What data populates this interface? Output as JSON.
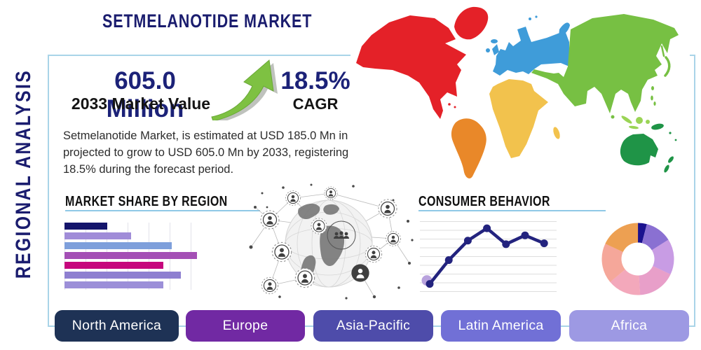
{
  "titles": {
    "side": "REGIONAL ANALYSIS",
    "main": "SETMELANOTIDE MARKET",
    "market_share_section": "MARKET SHARE BY REGION",
    "consumer_behavior_section": "CONSUMER BEHAVIOR"
  },
  "stats": {
    "market_value": "605.0 Million",
    "market_value_label": "2033 Market Value",
    "cagr_value": "18.5%",
    "cagr_label": "CAGR"
  },
  "description": "Setmelanotide Market, is estimated at USD 185.0 Mn in 2026, is projected to grow to USD 605.0 Mn by 2033, registering a CAGR of 18.5% during the forecast period.",
  "region_buttons": [
    {
      "label": "North America",
      "color": "#1e3255"
    },
    {
      "label": "Europe",
      "color": "#7129a3"
    },
    {
      "label": "Asia-Pacific",
      "color": "#4e4caa"
    },
    {
      "label": "Latin America",
      "color": "#7170d6"
    },
    {
      "label": "Africa",
      "color": "#9d99e3"
    }
  ],
  "map": {
    "region_colors": {
      "north_america": "#e42128",
      "south_america": "#e98829",
      "europe": "#3f9cd9",
      "africa": "#f2c24d",
      "asia": "#77c043",
      "asia_light": "#9ad455",
      "oceania": "#1f9447"
    }
  },
  "icons": {
    "growth_arrow": "up-right-curved-arrow",
    "globe": "globe-network-graphic"
  },
  "theme": {
    "navy": "#1a1c6e",
    "text_dark": "#2c2c2c",
    "panel_border": "#a9d4e8",
    "underline": "#8fc8e6",
    "arrow_green": "#7ec142"
  },
  "chart_data": [
    {
      "type": "bar",
      "orientation": "horizontal",
      "title": "MARKET SHARE BY REGION",
      "values": [
        29,
        45,
        73,
        90,
        67,
        79,
        67
      ],
      "unit": "relative share (% of chart width, no numeric labels shown)",
      "colors": [
        "#14156b",
        "#a08cd8",
        "#7e9fdb",
        "#a44fb5",
        "#c6067d",
        "#8e7fd0",
        "#9c8fd8"
      ],
      "xlim": [
        0,
        100
      ],
      "grid": true
    },
    {
      "type": "line",
      "title": "CONSUMER BEHAVIOR",
      "x": [
        1,
        2,
        3,
        4,
        5,
        6,
        7
      ],
      "values": [
        0.9,
        3.6,
        5.8,
        7.2,
        5.4,
        6.4,
        5.5
      ],
      "ylim": [
        0,
        8
      ],
      "line_color": "#23237e",
      "first_point_halo_color": "#b49ddb",
      "grid": true,
      "legend": "none"
    },
    {
      "type": "pie",
      "donut": true,
      "title": "",
      "slices": [
        {
          "value": 4,
          "color": "#1b128f"
        },
        {
          "value": 12,
          "color": "#8a70d2"
        },
        {
          "value": 16,
          "color": "#c89ce4"
        },
        {
          "value": 17,
          "color": "#e89fc9"
        },
        {
          "value": 15,
          "color": "#f3a8bb"
        },
        {
          "value": 18,
          "color": "#f5a79a"
        },
        {
          "value": 18,
          "color": "#eda052"
        }
      ]
    }
  ]
}
